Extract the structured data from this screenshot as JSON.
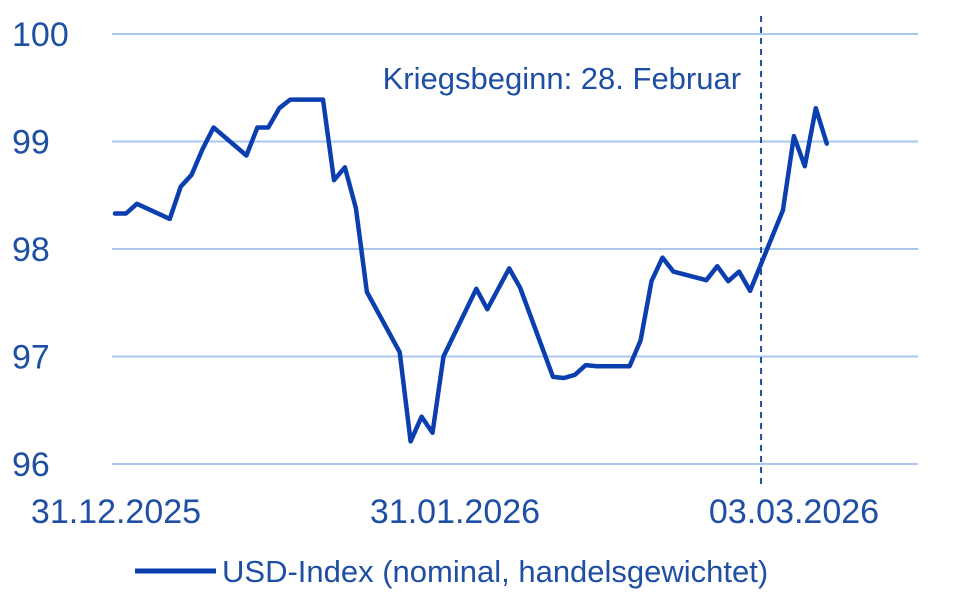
{
  "chart_data": {
    "type": "line",
    "title": "",
    "xlabel": "",
    "ylabel": "",
    "ylim": [
      96,
      100
    ],
    "y_ticks": [
      "96",
      "97",
      "98",
      "99",
      "100"
    ],
    "x_tick_labels": [
      "31.12.2025",
      "31.01.2026",
      "03.03.2026"
    ],
    "grid": "horizontal",
    "legend_position": "bottom",
    "annotation": {
      "text": "Kriegsbeginn: 28. Februar",
      "x": "2026-02-28"
    },
    "series": [
      {
        "name": "USD-Index (nominal, handelsgewichtet)",
        "color": "#0b3fb0",
        "points": [
          [
            "2025-12-31",
            98.33
          ],
          [
            "2026-01-01",
            98.33
          ],
          [
            "2026-01-02",
            98.42
          ],
          [
            "2026-01-05",
            98.28
          ],
          [
            "2026-01-06",
            98.58
          ],
          [
            "2026-01-07",
            98.69
          ],
          [
            "2026-01-08",
            98.93
          ],
          [
            "2026-01-09",
            99.13
          ],
          [
            "2026-01-12",
            98.87
          ],
          [
            "2026-01-13",
            99.13
          ],
          [
            "2026-01-14",
            99.13
          ],
          [
            "2026-01-15",
            99.31
          ],
          [
            "2026-01-16",
            99.39
          ],
          [
            "2026-01-19",
            99.39
          ],
          [
            "2026-01-20",
            98.64
          ],
          [
            "2026-01-21",
            98.76
          ],
          [
            "2026-01-22",
            98.38
          ],
          [
            "2026-01-23",
            97.6
          ],
          [
            "2026-01-26",
            97.04
          ],
          [
            "2026-01-27",
            96.21
          ],
          [
            "2026-01-28",
            96.44
          ],
          [
            "2026-01-29",
            96.29
          ],
          [
            "2026-01-30",
            97.0
          ],
          [
            "2026-02-02",
            97.63
          ],
          [
            "2026-02-03",
            97.44
          ],
          [
            "2026-02-05",
            97.82
          ],
          [
            "2026-02-06",
            97.64
          ],
          [
            "2026-02-09",
            96.81
          ],
          [
            "2026-02-10",
            96.8
          ],
          [
            "2026-02-11",
            96.83
          ],
          [
            "2026-02-12",
            96.92
          ],
          [
            "2026-02-13",
            96.91
          ],
          [
            "2026-02-16",
            96.91
          ],
          [
            "2026-02-17",
            97.15
          ],
          [
            "2026-02-18",
            97.7
          ],
          [
            "2026-02-19",
            97.92
          ],
          [
            "2026-02-20",
            97.79
          ],
          [
            "2026-02-23",
            97.71
          ],
          [
            "2026-02-24",
            97.84
          ],
          [
            "2026-02-25",
            97.7
          ],
          [
            "2026-02-26",
            97.79
          ],
          [
            "2026-02-27",
            97.61
          ],
          [
            "2026-03-02",
            98.36
          ],
          [
            "2026-03-03",
            99.05
          ],
          [
            "2026-03-04",
            98.77
          ],
          [
            "2026-03-05",
            99.31
          ],
          [
            "2026-03-06",
            98.98
          ]
        ]
      }
    ]
  }
}
